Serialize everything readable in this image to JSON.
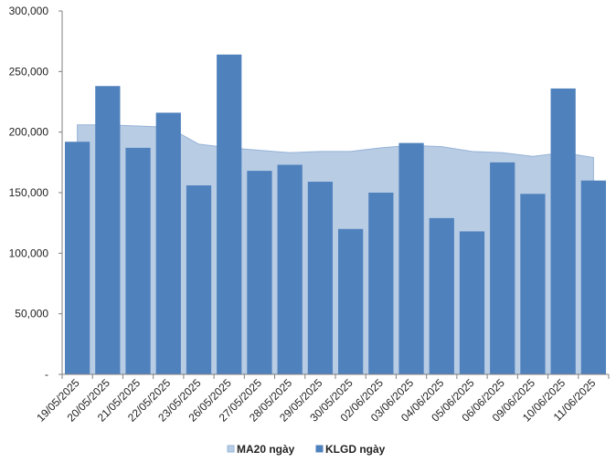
{
  "chart_data": {
    "type": "bar",
    "categories": [
      "19/05/2025",
      "20/05/2025",
      "21/05/2025",
      "22/05/2025",
      "23/05/2025",
      "26/05/2025",
      "27/05/2025",
      "28/05/2025",
      "29/05/2025",
      "30/05/2025",
      "02/06/2025",
      "03/06/2025",
      "04/06/2025",
      "05/06/2025",
      "06/06/2025",
      "09/06/2025",
      "10/06/2025",
      "11/06/2025"
    ],
    "series": [
      {
        "name": "MA20 ngày",
        "type": "area",
        "values": [
          206000,
          206000,
          205000,
          204000,
          190000,
          187000,
          185000,
          183000,
          184000,
          184000,
          187000,
          189000,
          188000,
          184000,
          183000,
          180000,
          183000,
          179000
        ]
      },
      {
        "name": "KLGD ngày",
        "type": "bar",
        "values": [
          192000,
          238000,
          187000,
          216000,
          156000,
          264000,
          168000,
          173000,
          159000,
          120000,
          150000,
          191000,
          129000,
          118000,
          175000,
          149000,
          236000,
          160000
        ]
      }
    ],
    "ylim": [
      0,
      300000
    ],
    "yticks": [
      "-",
      "50,000",
      "100,000",
      "150,000",
      "200,000",
      "250,000",
      "300,000"
    ],
    "grid": false,
    "legend_position": "bottom",
    "colors": {
      "area_fill": "#b8cce4",
      "area_stroke": "#95b3d7",
      "bar": "#4f81bd",
      "axis": "#808080"
    }
  }
}
